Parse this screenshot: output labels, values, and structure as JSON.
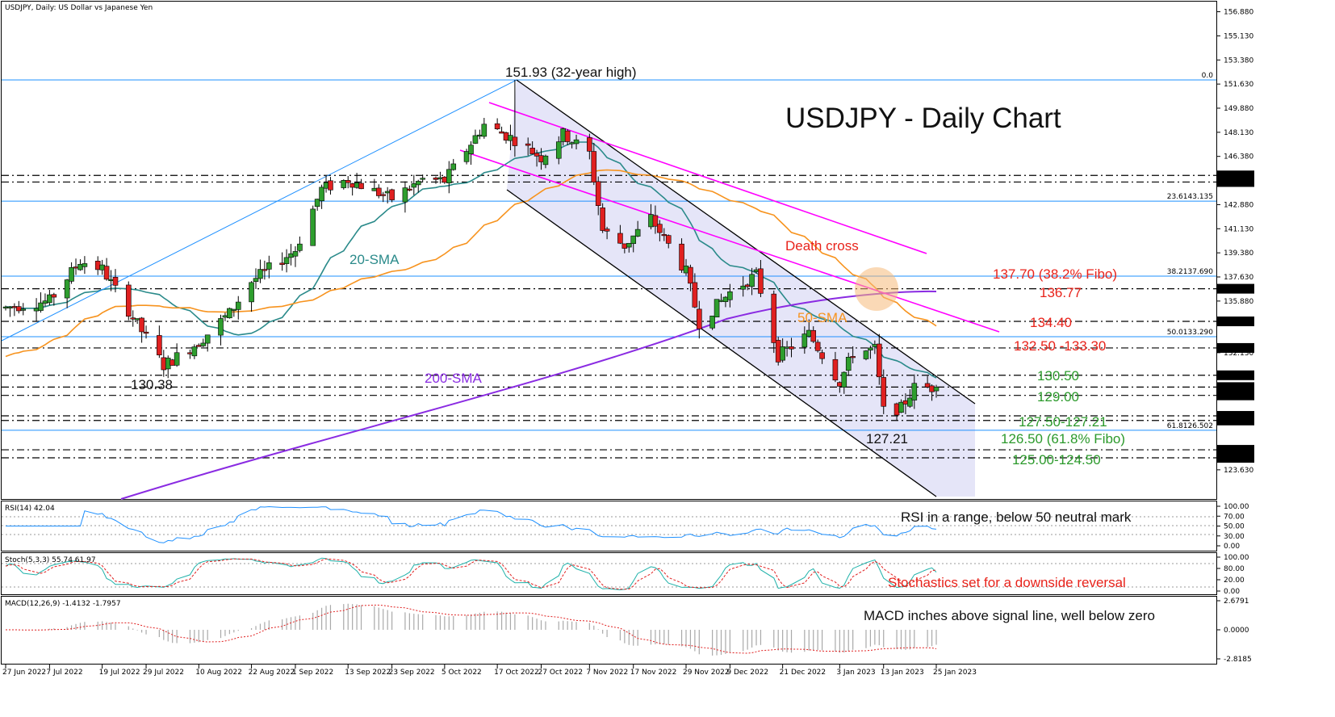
{
  "header": {
    "instrument": "USDJPY, Daily:  US Dollar vs Japanese Yen"
  },
  "chart_title": "USDJPY - Daily Chart",
  "annotations": {
    "high": "151.93 (32-year high)",
    "low_left": "130.38",
    "low_right": "127.21",
    "sma20": "20-SMA",
    "sma50": "50-SMA",
    "sma200": "200-SMA",
    "death_cross": "Death cross",
    "levels": {
      "l1": "137.70 (38.2% Fibo)",
      "l2": "136.77",
      "l3": "134.40",
      "l4": "132.50 -133.30",
      "l5": "130.50",
      "l6": "129.00",
      "l7": "127.50-127.21",
      "l8": "126.50 (61.8% Fibo)",
      "l9": "125.00-124.50"
    },
    "rsi_note": "RSI in a range, below 50 neutral mark",
    "stoch_note": "Stochastics set for a downside reversal",
    "macd_note": "MACD inches above signal line, well below zero"
  },
  "indicators": {
    "rsi_label": "RSI(14) 42.04",
    "stoch_label": "Stoch(5,3,3) 55.74 61.97",
    "macd_label": "MACD(12,26,9) -1.4132 -1.7957"
  },
  "price_axis": {
    "ticks": [
      "156.880",
      "155.130",
      "153.380",
      "151.630",
      "149.880",
      "148.130",
      "146.380",
      "142.880",
      "141.130",
      "139.380",
      "137.630",
      "135.880",
      "132.130",
      "130.380",
      "123.630"
    ],
    "tags": [
      {
        "text": "145.000",
        "price": 145.0
      },
      {
        "text": "144.519",
        "price": 144.519
      },
      {
        "text": "136.774",
        "price": 136.774
      },
      {
        "text": "134.405",
        "price": 134.405
      },
      {
        "text": "132.476",
        "price": 132.476
      },
      {
        "text": "130.492",
        "price": 130.492
      },
      {
        "text": "129.635",
        "price": 129.635
      },
      {
        "text": "129.033",
        "price": 129.033
      },
      {
        "text": "127.547",
        "price": 127.547
      },
      {
        "text": "127.210",
        "price": 127.21
      },
      {
        "text": "125.083",
        "price": 125.083
      },
      {
        "text": "124.500",
        "price": 124.5
      }
    ],
    "fibo_labels": [
      {
        "text": "0.0",
        "price": 151.93
      },
      {
        "text": "23.6143.135",
        "price": 143.135
      },
      {
        "text": "38.2137.690",
        "price": 137.69
      },
      {
        "text": "50.0133.290",
        "price": 133.29
      },
      {
        "text": "61.8126.502",
        "price": 126.502
      }
    ]
  },
  "rsi_axis": [
    "100.00",
    "70.00",
    "50.00",
    "30.00",
    "0.00"
  ],
  "stoch_axis": [
    "100.00",
    "80.00",
    "20.00",
    "0.00"
  ],
  "macd_axis": [
    "2.6791",
    "0.0000",
    "-2.8185"
  ],
  "x_axis": [
    "27 Jun 2022",
    "7 Jul 2022",
    "19 Jul 2022",
    "29 Jul 2022",
    "10 Aug 2022",
    "22 Aug 2022",
    "1 Sep 2022",
    "13 Sep 2022",
    "23 Sep 2022",
    "5 Oct 2022",
    "17 Oct 2022",
    "27 Oct 2022",
    "7 Nov 2022",
    "17 Nov 2022",
    "29 Nov 2022",
    "9 Dec 2022",
    "21 Dec 2022",
    "3 Jan 2023",
    "13 Jan 2023",
    "25 Jan 2023"
  ],
  "colors": {
    "bull": "#2e9e2e",
    "bear": "#e02020",
    "sma20": "#2a8a8a",
    "sma50": "#f7931e",
    "sma200": "#8a2be2",
    "trendline": "#ff00ff",
    "channel": "#000000",
    "fibo": "#1e90ff",
    "label_red": "#e8231b",
    "label_green": "#2c9a2c",
    "rsi": "#1e90ff",
    "stoch_main": "#20b2aa",
    "stoch_signal": "#e02020",
    "macd_hist": "#a9a9a9",
    "macd_signal": "#e02020"
  },
  "chart_data": {
    "type": "candlestick",
    "title": "USDJPY - Daily Chart",
    "x_range": [
      "27 Jun 2022",
      "25 Jan 2023"
    ],
    "ylim": [
      122.5,
      157.5
    ],
    "key_points": [
      {
        "date": "2 Aug 2022",
        "label": "130.38",
        "value": 130.38
      },
      {
        "date": "21 Oct 2022",
        "label": "151.93 (32-year high)",
        "value": 151.93
      },
      {
        "date": "16 Jan 2023",
        "label": "127.21",
        "value": 127.21
      }
    ],
    "horizontal_levels": [
      145.0,
      144.519,
      136.774,
      134.405,
      132.476,
      130.492,
      129.033,
      127.547,
      127.21,
      125.083,
      124.5
    ],
    "fibonacci": [
      {
        "ratio": "0.0",
        "value": 151.93
      },
      {
        "ratio": "23.6",
        "value": 143.135
      },
      {
        "ratio": "38.2",
        "value": 137.69
      },
      {
        "ratio": "50.0",
        "value": 133.29
      },
      {
        "ratio": "61.8",
        "value": 126.502
      }
    ],
    "last_close": 129.635,
    "close_path": [
      [
        "27 Jun 2022",
        135.4
      ],
      [
        "7 Jul 2022",
        135.9
      ],
      [
        "14 Jul 2022",
        138.8
      ],
      [
        "19 Jul 2022",
        138.2
      ],
      [
        "29 Jul 2022",
        133.2
      ],
      [
        "2 Aug 2022",
        131.2
      ],
      [
        "10 Aug 2022",
        132.9
      ],
      [
        "17 Aug 2022",
        135.0
      ],
      [
        "22 Aug 2022",
        137.3
      ],
      [
        "1 Sep 2022",
        139.6
      ],
      [
        "7 Sep 2022",
        144.0
      ],
      [
        "13 Sep 2022",
        144.7
      ],
      [
        "23 Sep 2022",
        143.3
      ],
      [
        "30 Sep 2022",
        144.7
      ],
      [
        "5 Oct 2022",
        144.6
      ],
      [
        "14 Oct 2022",
        148.7
      ],
      [
        "21 Oct 2022",
        147.6
      ],
      [
        "27 Oct 2022",
        146.3
      ],
      [
        "1 Nov 2022",
        148.0
      ],
      [
        "7 Nov 2022",
        146.6
      ],
      [
        "10 Nov 2022",
        141.0
      ],
      [
        "15 Nov 2022",
        139.9
      ],
      [
        "21 Nov 2022",
        141.9
      ],
      [
        "29 Nov 2022",
        138.0
      ],
      [
        "2 Dec 2022",
        134.3
      ],
      [
        "9 Dec 2022",
        136.5
      ],
      [
        "15 Dec 2022",
        137.8
      ],
      [
        "20 Dec 2022",
        131.9
      ],
      [
        "27 Dec 2022",
        133.5
      ],
      [
        "3 Jan 2023",
        130.0
      ],
      [
        "6 Jan 2023",
        132.1
      ],
      [
        "11 Jan 2023",
        132.4
      ],
      [
        "13 Jan 2023",
        127.9
      ],
      [
        "17 Jan 2023",
        128.1
      ],
      [
        "20 Jan 2023",
        129.6
      ],
      [
        "25 Jan 2023",
        129.6
      ]
    ],
    "indicators": {
      "RSI(14)": 42.04,
      "Stoch(5,3,3)": [
        55.74,
        61.97
      ],
      "MACD(12,26,9)": [
        -1.4132,
        -1.7957
      ]
    }
  }
}
